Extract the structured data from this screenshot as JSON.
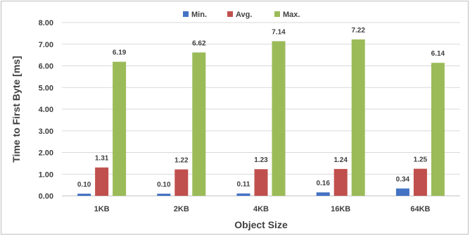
{
  "chart_data": {
    "type": "bar",
    "title": "",
    "xlabel": "Object Size",
    "ylabel": "Time to First Byte [ms]",
    "categories": [
      "1KB",
      "2KB",
      "4KB",
      "16KB",
      "64KB"
    ],
    "ylim": [
      0,
      8
    ],
    "yticks": [
      "0.00",
      "1.00",
      "2.00",
      "3.00",
      "4.00",
      "5.00",
      "6.00",
      "7.00",
      "8.00"
    ],
    "grid": true,
    "legend_position": "top",
    "series": [
      {
        "name": "Min.",
        "color": "#4472c4",
        "values": [
          0.1,
          0.1,
          0.11,
          0.16,
          0.34
        ],
        "labels": [
          "0.10",
          "0.10",
          "0.11",
          "0.16",
          "0.34"
        ]
      },
      {
        "name": "Avg.",
        "color": "#c0504d",
        "values": [
          1.31,
          1.22,
          1.23,
          1.24,
          1.25
        ],
        "labels": [
          "1.31",
          "1.22",
          "1.23",
          "1.24",
          "1.25"
        ]
      },
      {
        "name": "Max.",
        "color": "#9bbb59",
        "values": [
          6.19,
          6.62,
          7.14,
          7.22,
          6.14
        ],
        "labels": [
          "6.19",
          "6.62",
          "7.14",
          "7.22",
          "6.14"
        ]
      }
    ]
  }
}
